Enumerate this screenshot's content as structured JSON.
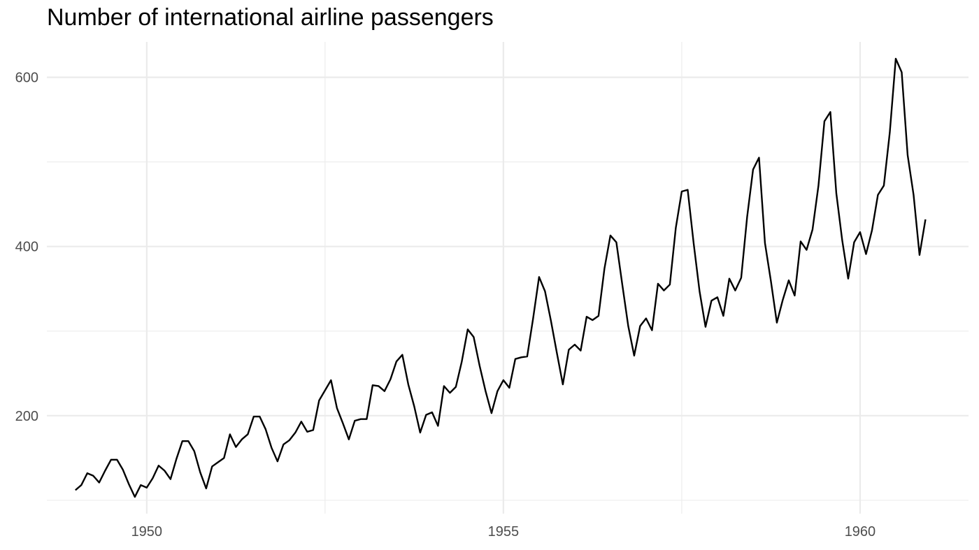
{
  "chart_data": {
    "type": "line",
    "title": "Number of international airline passengers",
    "xlabel": "",
    "ylabel": "",
    "xlim": [
      1948.6,
      1961.52
    ],
    "ylim": [
      84.2,
      641.8
    ],
    "x_ticks": [
      1950,
      1955,
      1960
    ],
    "x_tick_labels": [
      "1950",
      "1955",
      "1960"
    ],
    "x_minor_ticks": [
      1952.5,
      1957.5
    ],
    "y_ticks": [
      200,
      400,
      600
    ],
    "y_tick_labels": [
      "200",
      "400",
      "600"
    ],
    "y_minor_ticks": [
      100,
      300,
      500
    ],
    "grid": true,
    "line_color": "#000000",
    "grid_color": "#ebebeb",
    "series": [
      {
        "x_start": 1949.0,
        "x_step": 0.0833333,
        "values": [
          112,
          118,
          132,
          129,
          121,
          135,
          148,
          148,
          136,
          119,
          104,
          118,
          115,
          126,
          141,
          135,
          125,
          149,
          170,
          170,
          158,
          133,
          114,
          140,
          145,
          150,
          178,
          163,
          172,
          178,
          199,
          199,
          184,
          162,
          146,
          166,
          171,
          180,
          193,
          181,
          183,
          218,
          230,
          242,
          209,
          191,
          172,
          194,
          196,
          196,
          236,
          235,
          229,
          243,
          264,
          272,
          237,
          211,
          180,
          201,
          204,
          188,
          235,
          227,
          234,
          264,
          302,
          293,
          259,
          229,
          203,
          229,
          242,
          233,
          267,
          269,
          270,
          315,
          364,
          347,
          312,
          274,
          237,
          278,
          284,
          277,
          317,
          313,
          318,
          374,
          413,
          405,
          355,
          306,
          271,
          306,
          315,
          301,
          356,
          348,
          355,
          422,
          465,
          467,
          404,
          347,
          305,
          336,
          340,
          318,
          362,
          348,
          363,
          435,
          491,
          505,
          404,
          359,
          310,
          337,
          360,
          342,
          406,
          396,
          420,
          472,
          548,
          559,
          463,
          407,
          362,
          405,
          417,
          391,
          419,
          461,
          472,
          535,
          622,
          606,
          508,
          461,
          390,
          432
        ]
      }
    ]
  }
}
